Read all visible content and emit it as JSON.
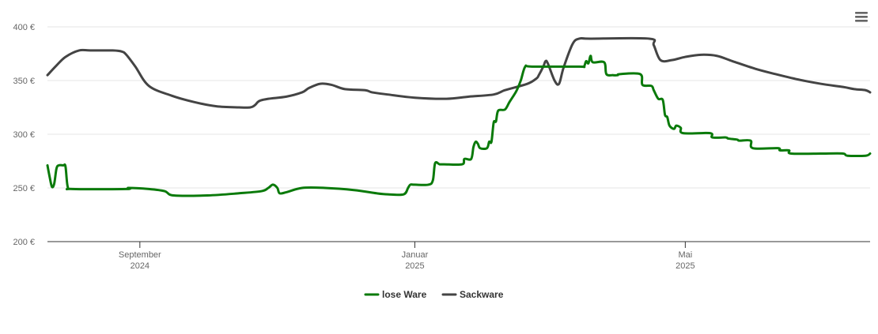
{
  "menu": {
    "icon": "hamburger-menu-icon"
  },
  "colors": {
    "lose_ware": "#0a7a0a",
    "sackware": "#444444",
    "grid": "#e6e6e6",
    "axis": "#333333",
    "label": "#666666"
  },
  "chart_data": {
    "type": "line",
    "title": "",
    "xlabel": "",
    "ylabel": "",
    "ylim": [
      200,
      400
    ],
    "xlim": [
      "2024-07-22",
      "2025-07-22"
    ],
    "grid": true,
    "legend": "bottom-center",
    "y_ticks": [
      "400 €",
      "350 €",
      "300 €",
      "250 €",
      "200 €"
    ],
    "y_tick_values": [
      400,
      350,
      300,
      250,
      200
    ],
    "x_ticks": [
      {
        "date": "2024-09-01",
        "month": "September",
        "year": "2024"
      },
      {
        "date": "2025-01-01",
        "month": "Januar",
        "year": "2025"
      },
      {
        "date": "2025-05-01",
        "month": "Mai",
        "year": "2025"
      }
    ],
    "series": [
      {
        "name": "lose Ware",
        "color": "#0a7a0a",
        "points": [
          [
            "2024-07-22",
            271
          ],
          [
            "2024-07-23",
            260
          ],
          [
            "2024-07-24",
            251
          ],
          [
            "2024-07-25",
            254
          ],
          [
            "2024-07-26",
            268
          ],
          [
            "2024-07-27",
            271
          ],
          [
            "2024-07-29",
            271
          ],
          [
            "2024-07-30",
            270
          ],
          [
            "2024-07-31",
            251
          ],
          [
            "2024-08-02",
            249
          ],
          [
            "2024-08-26",
            249
          ],
          [
            "2024-08-27",
            250
          ],
          [
            "2024-09-05",
            249
          ],
          [
            "2024-09-12",
            247
          ],
          [
            "2024-09-16",
            243
          ],
          [
            "2024-10-01",
            243
          ],
          [
            "2024-10-15",
            245
          ],
          [
            "2024-10-25",
            247
          ],
          [
            "2024-10-28",
            250
          ],
          [
            "2024-10-30",
            253
          ],
          [
            "2024-11-01",
            250
          ],
          [
            "2024-11-02",
            245
          ],
          [
            "2024-11-05",
            246
          ],
          [
            "2024-11-12",
            250
          ],
          [
            "2024-11-22",
            250
          ],
          [
            "2024-12-05",
            248
          ],
          [
            "2024-12-15",
            245
          ],
          [
            "2024-12-20",
            244
          ],
          [
            "2024-12-27",
            244
          ],
          [
            "2024-12-29",
            250
          ],
          [
            "2024-12-30",
            253
          ],
          [
            "2025-01-01",
            253
          ],
          [
            "2025-01-07",
            253
          ],
          [
            "2025-01-09",
            257
          ],
          [
            "2025-01-10",
            273
          ],
          [
            "2025-01-12",
            272
          ],
          [
            "2025-01-14",
            272
          ],
          [
            "2025-01-22",
            272
          ],
          [
            "2025-01-23",
            277
          ],
          [
            "2025-01-26",
            277
          ],
          [
            "2025-01-27",
            288
          ],
          [
            "2025-01-28",
            293
          ],
          [
            "2025-01-29",
            291
          ],
          [
            "2025-01-30",
            287
          ],
          [
            "2025-02-02",
            287
          ],
          [
            "2025-02-03",
            293
          ],
          [
            "2025-02-04",
            293
          ],
          [
            "2025-02-05",
            311
          ],
          [
            "2025-02-06",
            312
          ],
          [
            "2025-02-07",
            322
          ],
          [
            "2025-02-10",
            323
          ],
          [
            "2025-02-12",
            330
          ],
          [
            "2025-02-15",
            340
          ],
          [
            "2025-02-17",
            350
          ],
          [
            "2025-02-19",
            363
          ],
          [
            "2025-02-22",
            363
          ],
          [
            "2025-03-15",
            363
          ],
          [
            "2025-03-17",
            363
          ],
          [
            "2025-03-18",
            368
          ],
          [
            "2025-03-19",
            366
          ],
          [
            "2025-03-20",
            373
          ],
          [
            "2025-03-21",
            367
          ],
          [
            "2025-03-26",
            367
          ],
          [
            "2025-03-27",
            356
          ],
          [
            "2025-03-30",
            355
          ],
          [
            "2025-04-01",
            355
          ],
          [
            "2025-04-02",
            356
          ],
          [
            "2025-04-11",
            356
          ],
          [
            "2025-04-12",
            346
          ],
          [
            "2025-04-16",
            345
          ],
          [
            "2025-04-17",
            341
          ],
          [
            "2025-04-19",
            333
          ],
          [
            "2025-04-21",
            332
          ],
          [
            "2025-04-22",
            318
          ],
          [
            "2025-04-23",
            316
          ],
          [
            "2025-04-24",
            308
          ],
          [
            "2025-04-26",
            305
          ],
          [
            "2025-04-27",
            308
          ],
          [
            "2025-04-29",
            306
          ],
          [
            "2025-04-30",
            301
          ],
          [
            "2025-05-12",
            301
          ],
          [
            "2025-05-13",
            297
          ],
          [
            "2025-05-19",
            297
          ],
          [
            "2025-05-20",
            296
          ],
          [
            "2025-05-24",
            295
          ],
          [
            "2025-05-25",
            294
          ],
          [
            "2025-05-30",
            294
          ],
          [
            "2025-05-31",
            287
          ],
          [
            "2025-06-11",
            287
          ],
          [
            "2025-06-12",
            285
          ],
          [
            "2025-06-16",
            285
          ],
          [
            "2025-06-17",
            282
          ],
          [
            "2025-06-30",
            282
          ],
          [
            "2025-07-02",
            282
          ],
          [
            "2025-07-10",
            282
          ],
          [
            "2025-07-12",
            280
          ],
          [
            "2025-07-20",
            280
          ],
          [
            "2025-07-22",
            282
          ]
        ]
      },
      {
        "name": "Sackware",
        "color": "#444444",
        "points": [
          [
            "2024-07-22",
            355
          ],
          [
            "2024-07-26",
            364
          ],
          [
            "2024-07-30",
            372
          ],
          [
            "2024-08-05",
            378
          ],
          [
            "2024-08-10",
            378
          ],
          [
            "2024-08-20",
            378
          ],
          [
            "2024-08-24",
            377
          ],
          [
            "2024-08-26",
            374
          ],
          [
            "2024-08-30",
            363
          ],
          [
            "2024-09-05",
            345
          ],
          [
            "2024-09-15",
            336
          ],
          [
            "2024-09-25",
            330
          ],
          [
            "2024-10-05",
            326
          ],
          [
            "2024-10-15",
            325
          ],
          [
            "2024-10-20",
            325
          ],
          [
            "2024-10-22",
            327
          ],
          [
            "2024-10-24",
            331
          ],
          [
            "2024-10-28",
            333
          ],
          [
            "2024-11-05",
            335
          ],
          [
            "2024-11-12",
            339
          ],
          [
            "2024-11-15",
            343
          ],
          [
            "2024-11-20",
            347
          ],
          [
            "2024-11-25",
            346
          ],
          [
            "2024-12-01",
            342
          ],
          [
            "2024-12-10",
            341
          ],
          [
            "2024-12-13",
            339
          ],
          [
            "2024-12-20",
            337
          ],
          [
            "2025-01-01",
            334
          ],
          [
            "2025-01-15",
            333
          ],
          [
            "2025-01-25",
            335
          ],
          [
            "2025-02-05",
            337
          ],
          [
            "2025-02-10",
            341
          ],
          [
            "2025-02-20",
            347
          ],
          [
            "2025-02-24",
            352
          ],
          [
            "2025-02-25",
            355
          ],
          [
            "2025-02-27",
            363
          ],
          [
            "2025-02-28",
            368
          ],
          [
            "2025-03-01",
            366
          ],
          [
            "2025-03-04",
            350
          ],
          [
            "2025-03-06",
            347
          ],
          [
            "2025-03-08",
            362
          ],
          [
            "2025-03-12",
            384
          ],
          [
            "2025-03-15",
            389
          ],
          [
            "2025-03-20",
            389
          ],
          [
            "2025-04-15",
            389
          ],
          [
            "2025-04-17",
            383
          ],
          [
            "2025-04-20",
            369
          ],
          [
            "2025-04-25",
            369
          ],
          [
            "2025-05-01",
            372
          ],
          [
            "2025-05-08",
            374
          ],
          [
            "2025-05-15",
            373
          ],
          [
            "2025-05-22",
            368
          ],
          [
            "2025-06-01",
            361
          ],
          [
            "2025-06-10",
            356
          ],
          [
            "2025-06-20",
            351
          ],
          [
            "2025-06-30",
            347
          ],
          [
            "2025-07-10",
            344
          ],
          [
            "2025-07-15",
            342
          ],
          [
            "2025-07-20",
            341
          ],
          [
            "2025-07-22",
            339
          ]
        ]
      }
    ]
  }
}
